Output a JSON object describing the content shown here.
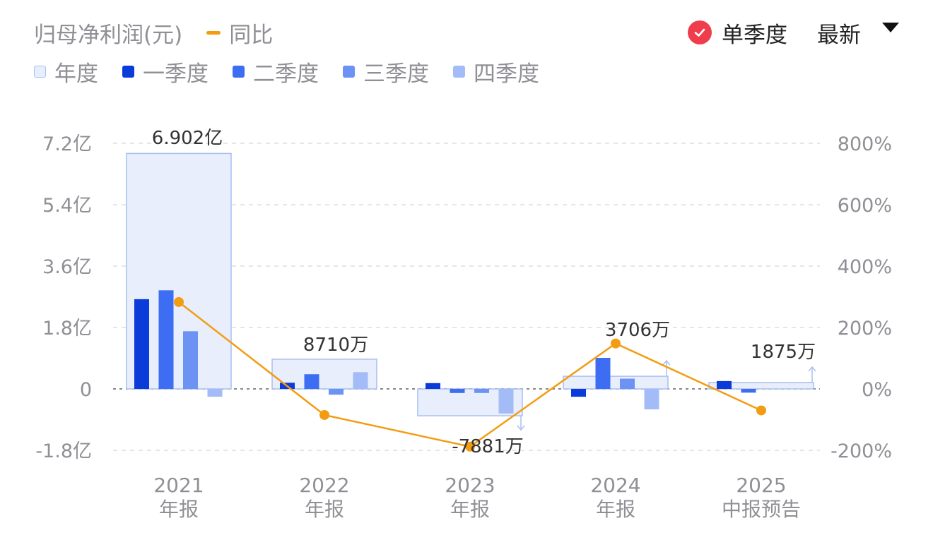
{
  "legend": {
    "title": "归母净利润(元)",
    "yoy_label": "同比",
    "annual_label": "年度",
    "q1_label": "一季度",
    "q2_label": "二季度",
    "q3_label": "三季度",
    "q4_label": "四季度"
  },
  "toggle": {
    "single_quarter_label": "单季度",
    "latest_label": "最新"
  },
  "colors": {
    "annual_fill": "#e8eefc",
    "annual_stroke": "#a9bff2",
    "q1": "#0b3bd8",
    "q2": "#3d6df2",
    "q3": "#6c92f4",
    "q4": "#a3bbf7",
    "yoy": "#f39c12",
    "check": "#f03d4d"
  },
  "chart_data": {
    "type": "bar",
    "categories": [
      "2021 年报",
      "2022 年报",
      "2023 年报",
      "2024 年报",
      "2025 中报预告"
    ],
    "category_years": [
      "2021",
      "2022",
      "2023",
      "2024",
      "2025"
    ],
    "category_kinds": [
      "年报",
      "年报",
      "年报",
      "年报",
      "中报预告"
    ],
    "series": [
      {
        "name": "年度",
        "values": [
          690200000,
          87100000,
          -78810000,
          37060000,
          18750000
        ]
      },
      {
        "name": "一季度",
        "values": [
          263000000,
          18000000,
          17000000,
          -23000000,
          23000000
        ]
      },
      {
        "name": "二季度",
        "values": [
          289000000,
          43000000,
          -12000000,
          91000000,
          -11000000
        ]
      },
      {
        "name": "三季度",
        "values": [
          169000000,
          -17000000,
          -12000000,
          30000000,
          null
        ]
      },
      {
        "name": "四季度",
        "values": [
          -23000000,
          49000000,
          -72000000,
          -60000000,
          null
        ]
      },
      {
        "name": "同比",
        "axis": "right",
        "values": [
          283,
          -85,
          -188,
          148,
          -70
        ]
      }
    ],
    "annual_labels": [
      "6.902亿",
      "8710万",
      "-7881万",
      "3706万",
      "1875万"
    ],
    "annual_arrows": [
      "none",
      "none",
      "down",
      "up",
      "up"
    ],
    "y_left": {
      "ylim": [
        -180000000,
        720000000
      ],
      "ticks": [
        -180000000,
        0,
        180000000,
        360000000,
        540000000,
        720000000
      ],
      "tick_labels": [
        "-1.8亿",
        "0",
        "1.8亿",
        "3.6亿",
        "5.4亿",
        "7.2亿"
      ]
    },
    "y_right": {
      "ylim": [
        -200,
        800
      ],
      "ticks": [
        -200,
        0,
        200,
        400,
        600,
        800
      ],
      "tick_labels": [
        "-200%",
        "0%",
        "200%",
        "400%",
        "600%",
        "800%"
      ]
    },
    "grid": true
  }
}
